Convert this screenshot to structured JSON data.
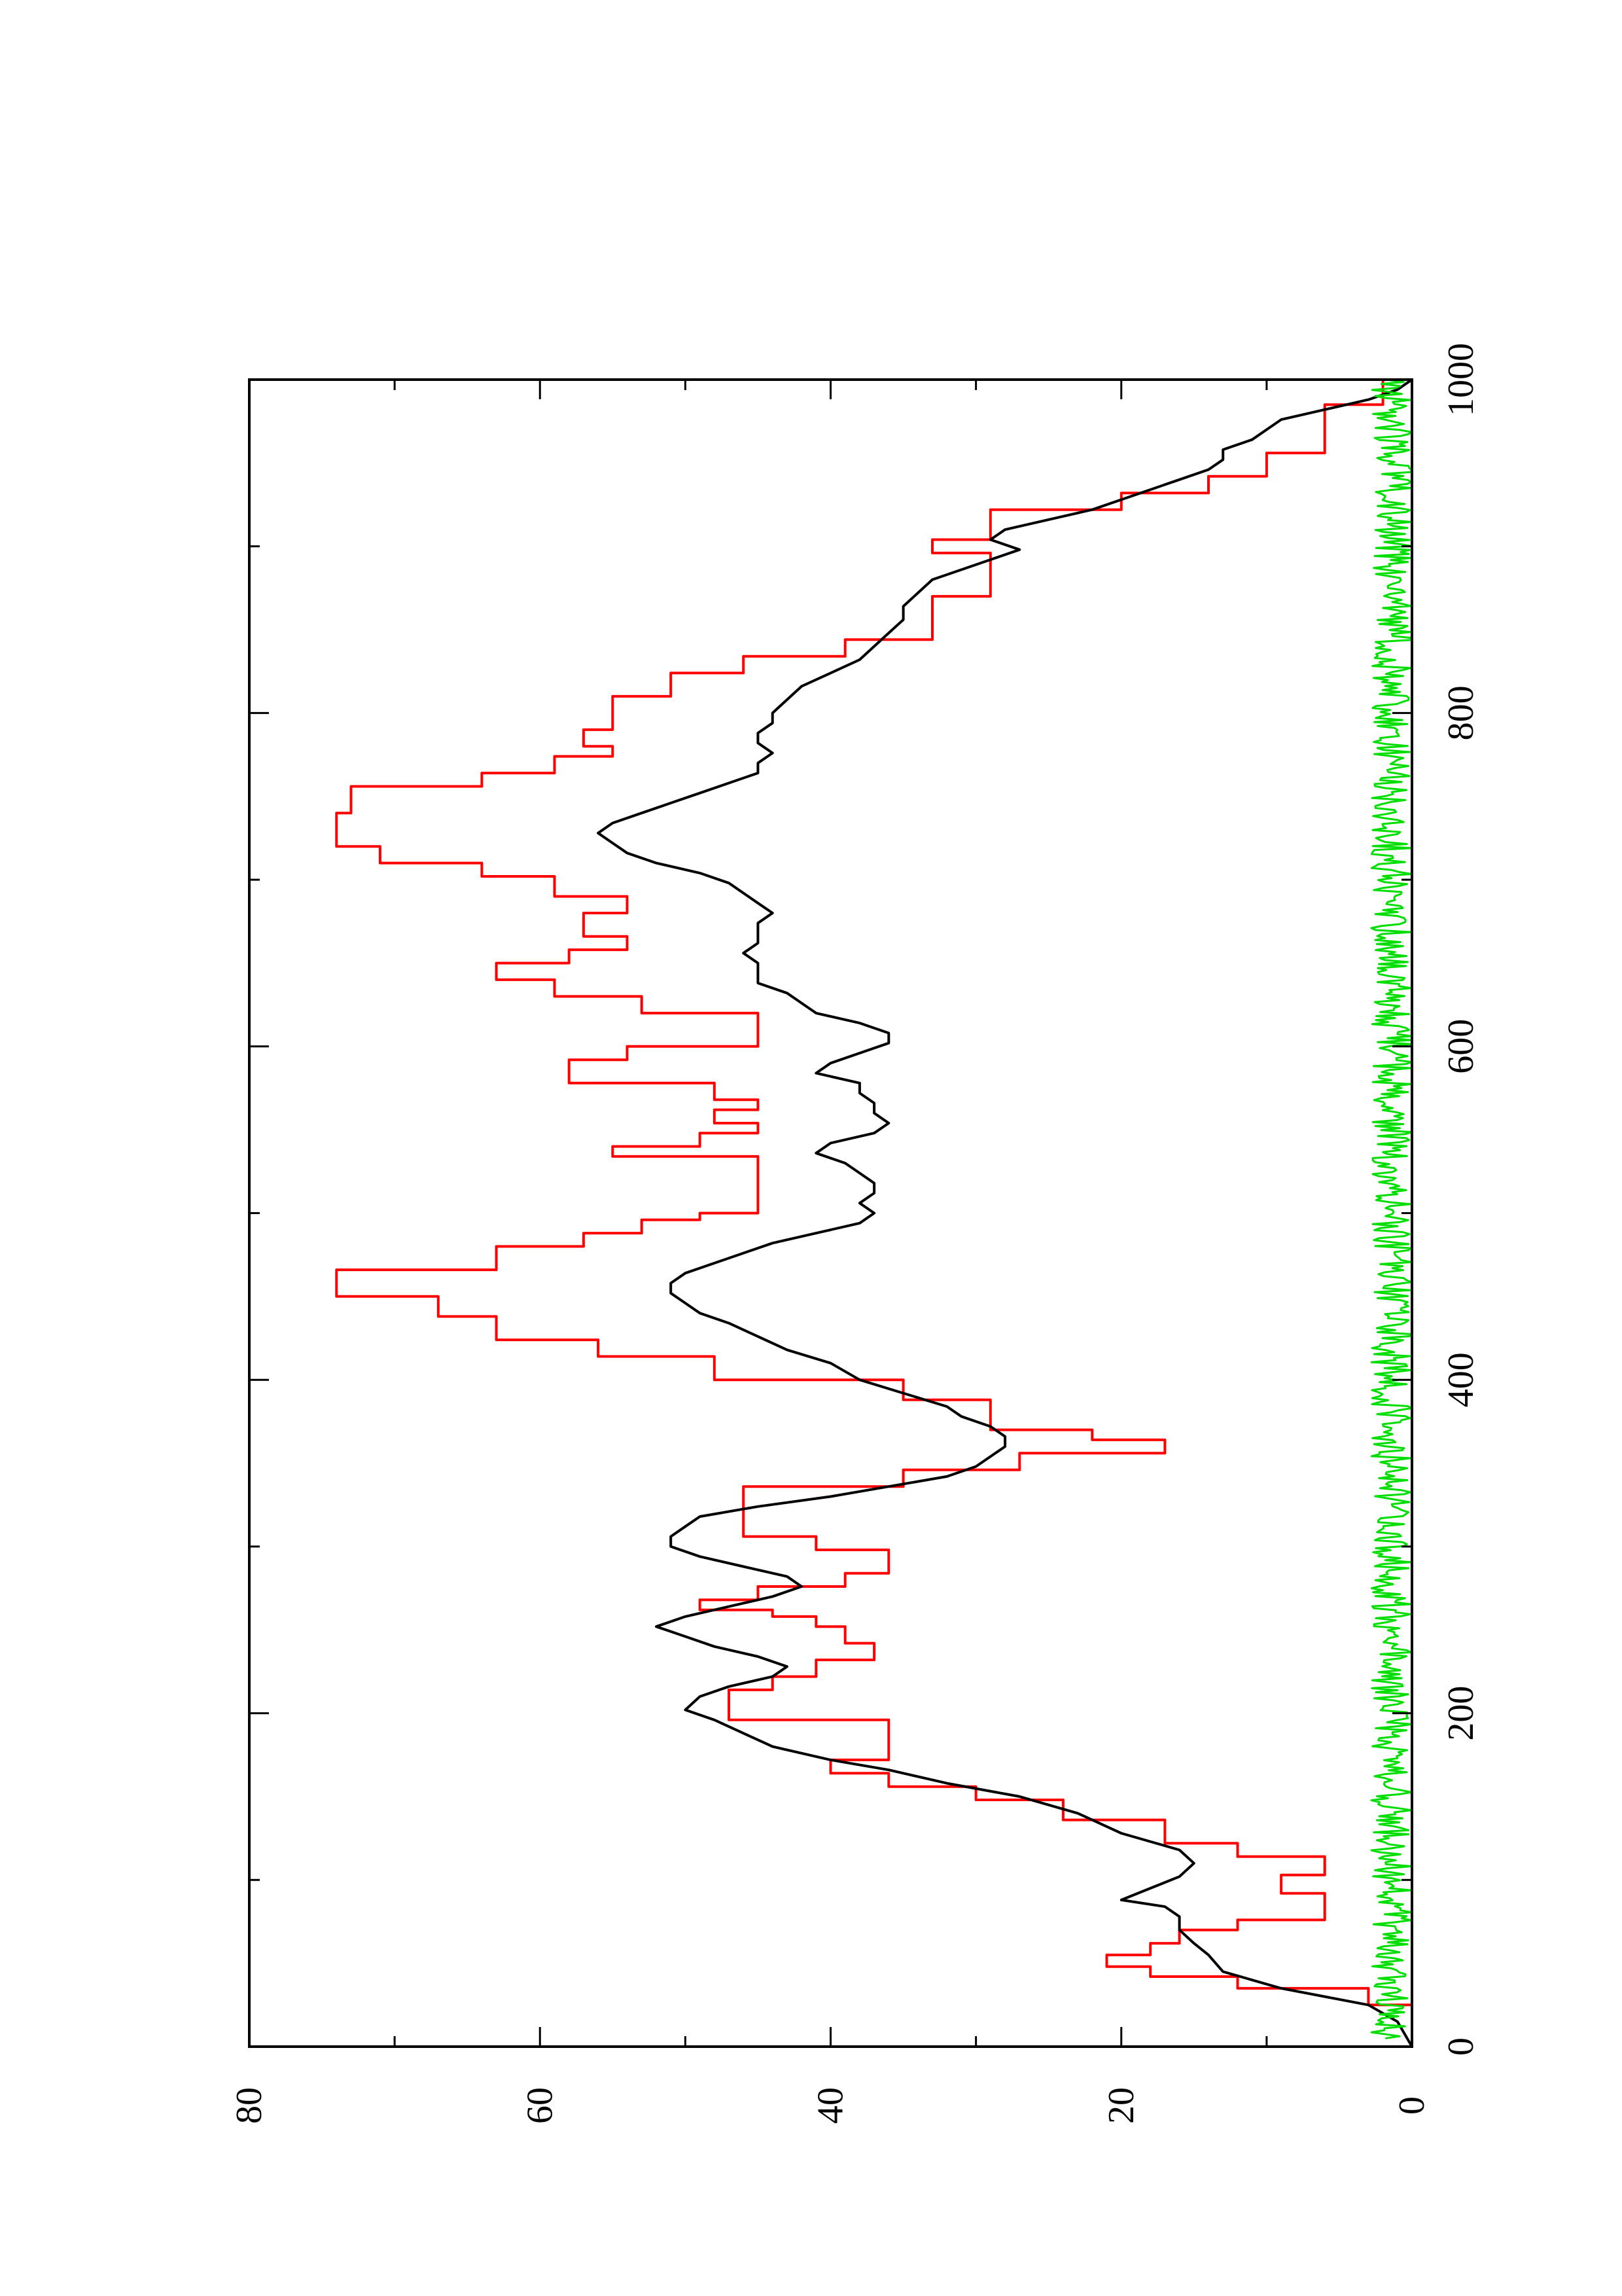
{
  "chart_data": {
    "type": "line",
    "title": "",
    "xlabel": "",
    "ylabel": "",
    "xlim": [
      0,
      1000
    ],
    "ylim": [
      0,
      80
    ],
    "x_ticks_major": [
      0,
      200,
      400,
      600,
      800,
      1000
    ],
    "x_ticks_minor": [
      100,
      300,
      500,
      700,
      900
    ],
    "y_ticks_major": [
      0,
      20,
      40,
      60,
      80
    ],
    "y_ticks_minor": [
      10,
      30,
      50,
      70
    ],
    "x_tick_labels": [
      "0",
      "200",
      "400",
      "600",
      "800",
      "1000"
    ],
    "y_tick_labels": [
      "0",
      "20",
      "40",
      "60",
      "80"
    ],
    "orientation": "rotated-90-ccw",
    "grid": false,
    "legend": "none",
    "series": [
      {
        "color": "#ff0000",
        "style": "step",
        "points": [
          [
            0,
            0
          ],
          [
            25,
            3
          ],
          [
            35,
            12
          ],
          [
            42,
            18
          ],
          [
            48,
            21
          ],
          [
            55,
            18
          ],
          [
            62,
            16
          ],
          [
            70,
            12
          ],
          [
            76,
            6
          ],
          [
            88,
            6
          ],
          [
            92,
            9
          ],
          [
            98,
            9
          ],
          [
            103,
            6
          ],
          [
            108,
            6
          ],
          [
            114,
            12
          ],
          [
            122,
            17
          ],
          [
            136,
            24
          ],
          [
            148,
            30
          ],
          [
            156,
            36
          ],
          [
            164,
            40
          ],
          [
            172,
            36
          ],
          [
            186,
            36
          ],
          [
            196,
            47
          ],
          [
            208,
            47
          ],
          [
            214,
            44
          ],
          [
            222,
            41
          ],
          [
            232,
            37
          ],
          [
            242,
            39
          ],
          [
            252,
            41
          ],
          [
            258,
            44
          ],
          [
            262,
            49
          ],
          [
            268,
            45
          ],
          [
            276,
            39
          ],
          [
            284,
            36
          ],
          [
            290,
            36
          ],
          [
            298,
            41
          ],
          [
            306,
            46
          ],
          [
            318,
            46
          ],
          [
            326,
            46
          ],
          [
            336,
            35
          ],
          [
            346,
            27
          ],
          [
            356,
            17
          ],
          [
            364,
            22
          ],
          [
            370,
            29
          ],
          [
            380,
            29
          ],
          [
            388,
            35
          ],
          [
            400,
            48
          ],
          [
            414,
            56
          ],
          [
            424,
            63
          ],
          [
            438,
            67
          ],
          [
            450,
            74
          ],
          [
            458,
            74
          ],
          [
            466,
            63
          ],
          [
            480,
            57
          ],
          [
            488,
            53
          ],
          [
            496,
            49
          ],
          [
            500,
            45
          ],
          [
            522,
            45
          ],
          [
            534,
            55
          ],
          [
            540,
            49
          ],
          [
            548,
            45
          ],
          [
            554,
            48
          ],
          [
            562,
            45
          ],
          [
            568,
            48
          ],
          [
            578,
            58
          ],
          [
            592,
            54
          ],
          [
            600,
            45
          ],
          [
            612,
            45
          ],
          [
            620,
            53
          ],
          [
            630,
            59
          ],
          [
            640,
            63
          ],
          [
            650,
            58
          ],
          [
            658,
            54
          ],
          [
            666,
            57
          ],
          [
            680,
            54
          ],
          [
            690,
            59
          ],
          [
            702,
            64
          ],
          [
            710,
            71
          ],
          [
            720,
            74
          ],
          [
            730,
            74
          ],
          [
            740,
            73
          ],
          [
            756,
            64
          ],
          [
            764,
            59
          ],
          [
            774,
            55
          ],
          [
            780,
            57
          ],
          [
            790,
            55
          ],
          [
            800,
            55
          ],
          [
            810,
            51
          ],
          [
            824,
            46
          ],
          [
            834,
            39
          ],
          [
            844,
            33
          ],
          [
            862,
            33
          ],
          [
            870,
            29
          ],
          [
            880,
            29
          ],
          [
            896,
            33
          ],
          [
            904,
            29
          ],
          [
            912,
            29
          ],
          [
            922,
            20
          ],
          [
            932,
            14
          ],
          [
            942,
            10
          ],
          [
            956,
            6
          ],
          [
            972,
            6
          ],
          [
            985,
            2
          ],
          [
            1000,
            0
          ]
        ]
      },
      {
        "color": "#000000",
        "style": "line",
        "points": [
          [
            0,
            0
          ],
          [
            15,
            1
          ],
          [
            25,
            3
          ],
          [
            35,
            9
          ],
          [
            45,
            13
          ],
          [
            55,
            14
          ],
          [
            62,
            15
          ],
          [
            70,
            16
          ],
          [
            78,
            16
          ],
          [
            84,
            17
          ],
          [
            88,
            20
          ],
          [
            95,
            18
          ],
          [
            102,
            16
          ],
          [
            110,
            15
          ],
          [
            118,
            16
          ],
          [
            128,
            20
          ],
          [
            140,
            23
          ],
          [
            150,
            27
          ],
          [
            158,
            32
          ],
          [
            166,
            36
          ],
          [
            172,
            40
          ],
          [
            180,
            44
          ],
          [
            188,
            46
          ],
          [
            196,
            48
          ],
          [
            202,
            50
          ],
          [
            210,
            49
          ],
          [
            216,
            47
          ],
          [
            222,
            44
          ],
          [
            228,
            43
          ],
          [
            234,
            45
          ],
          [
            240,
            48
          ],
          [
            246,
            50
          ],
          [
            252,
            52
          ],
          [
            258,
            50
          ],
          [
            264,
            47
          ],
          [
            270,
            44
          ],
          [
            276,
            42
          ],
          [
            282,
            43
          ],
          [
            288,
            46
          ],
          [
            294,
            49
          ],
          [
            300,
            51
          ],
          [
            306,
            51
          ],
          [
            312,
            50
          ],
          [
            318,
            49
          ],
          [
            324,
            45
          ],
          [
            330,
            40
          ],
          [
            336,
            36
          ],
          [
            342,
            32
          ],
          [
            348,
            30
          ],
          [
            354,
            29
          ],
          [
            360,
            28
          ],
          [
            366,
            28
          ],
          [
            372,
            29
          ],
          [
            378,
            31
          ],
          [
            384,
            32
          ],
          [
            392,
            35
          ],
          [
            400,
            38
          ],
          [
            410,
            40
          ],
          [
            418,
            43
          ],
          [
            426,
            45
          ],
          [
            434,
            47
          ],
          [
            440,
            49
          ],
          [
            446,
            50
          ],
          [
            452,
            51
          ],
          [
            458,
            51
          ],
          [
            464,
            50
          ],
          [
            470,
            48
          ],
          [
            476,
            46
          ],
          [
            482,
            44
          ],
          [
            488,
            41
          ],
          [
            494,
            38
          ],
          [
            500,
            37
          ],
          [
            506,
            38
          ],
          [
            512,
            37
          ],
          [
            518,
            37
          ],
          [
            524,
            38
          ],
          [
            530,
            39
          ],
          [
            536,
            41
          ],
          [
            542,
            40
          ],
          [
            548,
            37
          ],
          [
            554,
            36
          ],
          [
            560,
            37
          ],
          [
            566,
            37
          ],
          [
            572,
            38
          ],
          [
            578,
            38
          ],
          [
            584,
            41
          ],
          [
            590,
            40
          ],
          [
            596,
            38
          ],
          [
            602,
            36
          ],
          [
            608,
            36
          ],
          [
            614,
            38
          ],
          [
            620,
            41
          ],
          [
            626,
            42
          ],
          [
            632,
            43
          ],
          [
            638,
            45
          ],
          [
            644,
            45
          ],
          [
            650,
            45
          ],
          [
            656,
            46
          ],
          [
            662,
            45
          ],
          [
            668,
            45
          ],
          [
            674,
            45
          ],
          [
            680,
            44
          ],
          [
            686,
            45
          ],
          [
            692,
            46
          ],
          [
            698,
            47
          ],
          [
            704,
            49
          ],
          [
            710,
            52
          ],
          [
            716,
            54
          ],
          [
            722,
            55
          ],
          [
            728,
            56
          ],
          [
            734,
            55
          ],
          [
            740,
            53
          ],
          [
            746,
            51
          ],
          [
            752,
            49
          ],
          [
            758,
            47
          ],
          [
            764,
            45
          ],
          [
            770,
            45
          ],
          [
            776,
            44
          ],
          [
            782,
            45
          ],
          [
            788,
            45
          ],
          [
            794,
            44
          ],
          [
            800,
            44
          ],
          [
            808,
            43
          ],
          [
            816,
            42
          ],
          [
            824,
            40
          ],
          [
            832,
            38
          ],
          [
            840,
            37
          ],
          [
            848,
            36
          ],
          [
            856,
            35
          ],
          [
            864,
            35
          ],
          [
            872,
            34
          ],
          [
            880,
            33
          ],
          [
            886,
            31
          ],
          [
            892,
            29
          ],
          [
            898,
            27
          ],
          [
            904,
            29
          ],
          [
            910,
            28
          ],
          [
            916,
            25
          ],
          [
            922,
            22
          ],
          [
            928,
            20
          ],
          [
            934,
            18
          ],
          [
            940,
            16
          ],
          [
            946,
            14
          ],
          [
            952,
            13
          ],
          [
            958,
            13
          ],
          [
            964,
            11
          ],
          [
            970,
            10
          ],
          [
            976,
            9
          ],
          [
            982,
            6
          ],
          [
            988,
            3
          ],
          [
            994,
            1
          ],
          [
            1000,
            0
          ]
        ]
      },
      {
        "color": "#00dd00",
        "style": "noise",
        "mean": 1.2,
        "amplitude_min": 0,
        "amplitude_max": 2.8,
        "x_start": 5,
        "x_end": 1000
      }
    ]
  }
}
